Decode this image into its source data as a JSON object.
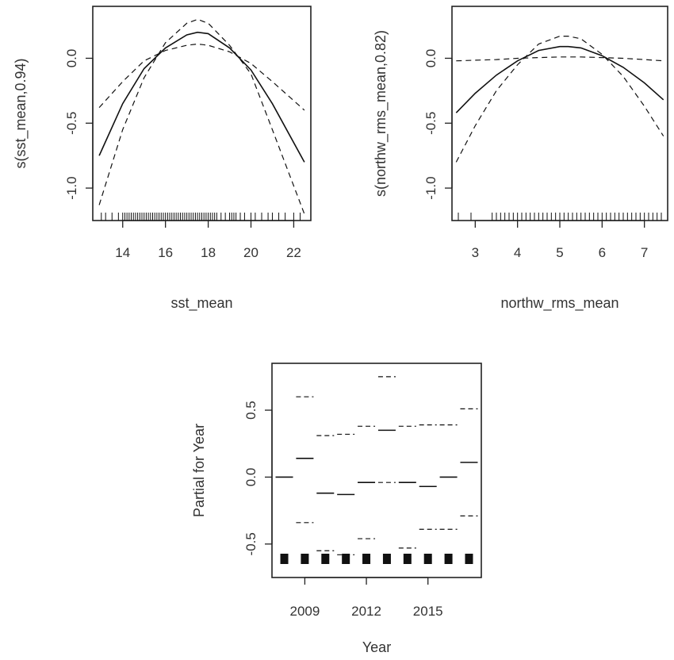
{
  "chart_data": [
    {
      "type": "line",
      "xlabel": "sst_mean",
      "ylabel": "s(sst_mean,0.94)",
      "xlim": [
        12.6,
        22.8
      ],
      "ylim": [
        -1.25,
        0.4
      ],
      "xticks": [
        "14",
        "16",
        "18",
        "20",
        "22"
      ],
      "yticks": [
        "-1.0",
        "-0.5",
        "0.0"
      ],
      "series": [
        {
          "role": "fit",
          "x": [
            12.9,
            14.0,
            15.0,
            16.0,
            17.0,
            17.5,
            18.0,
            19.0,
            20.0,
            21.0,
            22.5
          ],
          "y": [
            -0.75,
            -0.35,
            -0.08,
            0.08,
            0.18,
            0.2,
            0.19,
            0.08,
            -0.09,
            -0.35,
            -0.8
          ]
        },
        {
          "role": "upper",
          "x": [
            12.9,
            14.0,
            15.0,
            16.0,
            17.0,
            17.5,
            18.0,
            19.0,
            20.0,
            21.0,
            22.5
          ],
          "y": [
            -0.38,
            -0.18,
            -0.02,
            0.06,
            0.1,
            0.11,
            0.1,
            0.05,
            -0.04,
            -0.18,
            -0.4
          ]
        },
        {
          "role": "lower",
          "x": [
            12.9,
            14.0,
            15.0,
            16.0,
            17.0,
            17.5,
            18.0,
            19.0,
            20.0,
            21.0,
            22.5
          ],
          "y": [
            -1.13,
            -0.55,
            -0.15,
            0.12,
            0.27,
            0.3,
            0.27,
            0.1,
            -0.12,
            -0.55,
            -1.2
          ]
        }
      ],
      "rug": [
        13.0,
        13.2,
        13.5,
        13.8,
        14.0,
        14.1,
        14.2,
        14.3,
        14.4,
        14.5,
        14.6,
        14.7,
        14.8,
        14.9,
        15.0,
        15.1,
        15.2,
        15.3,
        15.4,
        15.5,
        15.6,
        15.7,
        15.8,
        15.9,
        16.0,
        16.1,
        16.2,
        16.3,
        16.4,
        16.5,
        16.6,
        16.7,
        16.8,
        16.9,
        17.0,
        17.1,
        17.2,
        17.3,
        17.4,
        17.5,
        17.6,
        17.7,
        17.8,
        17.9,
        18.0,
        18.1,
        18.2,
        18.3,
        18.4,
        18.6,
        18.8,
        19.0,
        19.1,
        19.2,
        19.3,
        19.5,
        19.7,
        20.0,
        20.2,
        20.5,
        20.8,
        21.0,
        21.3,
        21.6,
        22.0,
        22.3
      ]
    },
    {
      "type": "line",
      "xlabel": "northw_rms_mean",
      "ylabel": "s(northw_rms_mean,0.82)",
      "xlim": [
        2.45,
        7.55
      ],
      "ylim": [
        -1.25,
        0.4
      ],
      "xticks": [
        "3",
        "4",
        "5",
        "6",
        "7"
      ],
      "yticks": [
        "-1.0",
        "-0.5",
        "0.0"
      ],
      "series": [
        {
          "role": "fit",
          "x": [
            2.55,
            3.0,
            3.5,
            4.0,
            4.5,
            5.0,
            5.2,
            5.5,
            6.0,
            6.5,
            7.0,
            7.45
          ],
          "y": [
            -0.42,
            -0.27,
            -0.13,
            -0.02,
            0.06,
            0.09,
            0.09,
            0.08,
            0.02,
            -0.07,
            -0.19,
            -0.32
          ]
        },
        {
          "role": "upper",
          "x": [
            2.55,
            3.0,
            3.5,
            4.0,
            4.5,
            5.0,
            5.5,
            6.0,
            6.5,
            7.0,
            7.45
          ],
          "y": [
            -0.02,
            -0.015,
            -0.01,
            0.0,
            0.005,
            0.01,
            0.01,
            0.005,
            0.0,
            -0.01,
            -0.02
          ]
        },
        {
          "role": "lower",
          "x": [
            2.55,
            3.0,
            3.5,
            4.0,
            4.5,
            5.0,
            5.2,
            5.5,
            6.0,
            6.5,
            7.0,
            7.45
          ],
          "y": [
            -0.8,
            -0.52,
            -0.25,
            -0.05,
            0.11,
            0.17,
            0.17,
            0.15,
            0.03,
            -0.14,
            -0.37,
            -0.6
          ]
        }
      ],
      "rug": [
        2.6,
        2.9,
        3.4,
        3.5,
        3.6,
        3.7,
        3.8,
        3.9,
        4.0,
        4.1,
        4.2,
        4.3,
        4.4,
        4.5,
        4.6,
        4.7,
        4.8,
        4.9,
        5.0,
        5.1,
        5.2,
        5.3,
        5.4,
        5.5,
        5.6,
        5.7,
        5.8,
        5.9,
        6.0,
        6.1,
        6.2,
        6.3,
        6.4,
        6.5,
        6.6,
        6.7,
        6.8,
        6.9,
        7.0,
        7.1,
        7.2,
        7.3,
        7.4
      ]
    },
    {
      "type": "scatter",
      "xlabel": "Year",
      "ylabel": "Partial for Year",
      "xlim": [
        2007.4,
        2017.6
      ],
      "ylim": [
        -0.75,
        0.85
      ],
      "xticks": [
        "2009",
        "2012",
        "2015"
      ],
      "yticks": [
        "-0.5",
        "0.0",
        "0.5"
      ],
      "x": [
        2008,
        2009,
        2010,
        2011,
        2012,
        2013,
        2014,
        2015,
        2016,
        2017
      ],
      "estimate": [
        0.0,
        0.14,
        -0.12,
        -0.13,
        -0.04,
        0.35,
        -0.04,
        -0.07,
        0.0,
        0.11
      ],
      "upper": [
        null,
        0.6,
        0.31,
        0.32,
        0.38,
        0.75,
        0.38,
        0.39,
        0.39,
        0.51
      ],
      "lower": [
        null,
        -0.34,
        -0.55,
        -0.58,
        -0.46,
        -0.04,
        -0.53,
        -0.39,
        -0.39,
        -0.29
      ]
    }
  ]
}
